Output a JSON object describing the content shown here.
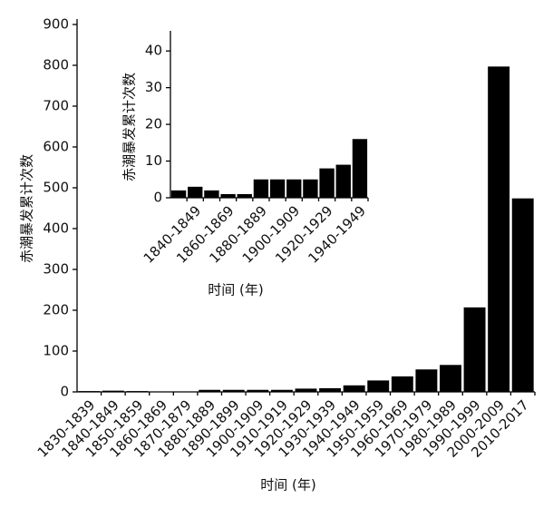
{
  "chart_data": [
    {
      "type": "bar",
      "ylabel": "赤潮暴发累计次数",
      "xlabel": "时间 (年)",
      "categories": [
        "1830-1839",
        "1840-1849",
        "1850-1859",
        "1860-1869",
        "1870-1879",
        "1880-1889",
        "1890-1899",
        "1900-1909",
        "1910-1919",
        "1920-1929",
        "1930-1939",
        "1940-1949",
        "1950-1959",
        "1960-1969",
        "1970-1979",
        "1980-1989",
        "1990-1999",
        "2000-2009",
        "2010-2017"
      ],
      "values": [
        2,
        3,
        2,
        1,
        1,
        5,
        5,
        5,
        5,
        8,
        9,
        16,
        28,
        38,
        55,
        66,
        207,
        797,
        474
      ],
      "color": "#000000",
      "ylim": [
        0,
        900
      ],
      "yticks": [
        0,
        100,
        200,
        300,
        400,
        500,
        600,
        700,
        800,
        900
      ]
    },
    {
      "type": "bar",
      "ylabel": "赤潮暴发累计次数",
      "xlabel": "时间 (年)",
      "categories": [
        null,
        "1840-1849",
        null,
        "1860-1869",
        null,
        "1880-1889",
        null,
        "1900-1909",
        null,
        "1920-1929",
        null,
        "1940-1949"
      ],
      "values": [
        2,
        3,
        2,
        1,
        1,
        5,
        5,
        5,
        5,
        8,
        9,
        16
      ],
      "color": "#000000",
      "ylim": [
        0,
        44
      ],
      "yticks": [
        0,
        10,
        20,
        30,
        40
      ]
    }
  ]
}
